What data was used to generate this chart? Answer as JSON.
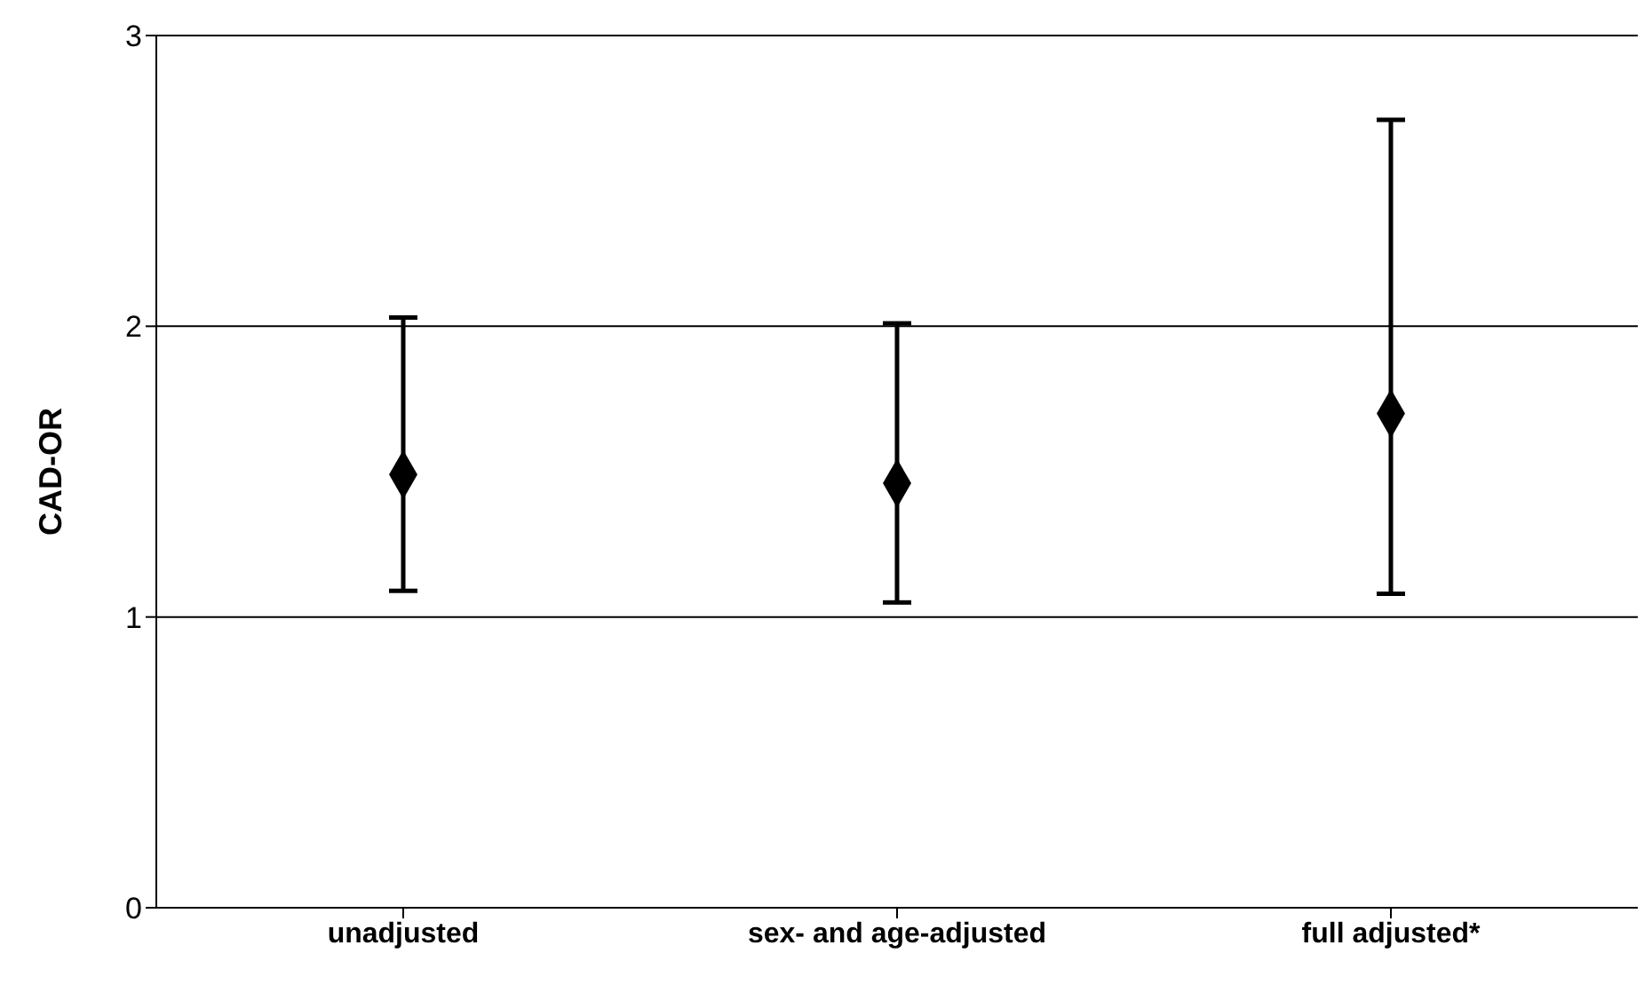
{
  "chart_data": {
    "type": "scatter",
    "ylabel": "CAD-OR",
    "categories": [
      "unadjusted",
      "sex- and age-adjusted",
      "full adjusted*"
    ],
    "series": [
      {
        "color": "#000000",
        "values": [
          1.49,
          1.46,
          1.7
        ],
        "errors": [
          [
            1.09,
            2.03
          ],
          [
            1.05,
            2.01
          ],
          [
            1.08,
            2.71
          ]
        ]
      }
    ],
    "ylim": [
      0,
      3
    ],
    "yticks": [
      0,
      1,
      2,
      3
    ],
    "grid": "y",
    "marker": "diamond"
  }
}
